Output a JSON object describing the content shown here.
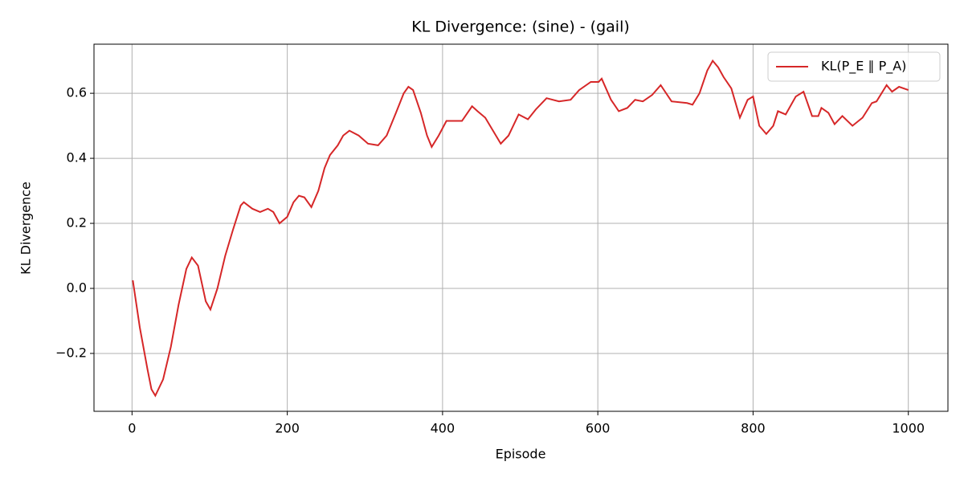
{
  "chart_data": {
    "type": "line",
    "title": "KL Divergence: (sine) - (gail)",
    "x_label": "Episode",
    "y_label": "KL Divergence",
    "x": [
      1,
      10,
      20,
      25,
      30,
      40,
      50,
      60,
      70,
      77,
      85,
      95,
      101,
      110,
      120,
      130,
      140,
      144,
      155,
      165,
      175,
      182,
      190,
      200,
      208,
      215,
      222,
      231,
      240,
      248,
      255,
      265,
      272,
      280,
      292,
      304,
      317,
      328,
      340,
      350,
      356,
      362,
      372,
      380,
      386,
      395,
      405,
      425,
      438,
      445,
      455,
      475,
      485,
      498,
      510,
      520,
      534,
      550,
      565,
      576,
      591,
      601,
      605,
      617,
      627,
      638,
      648,
      658,
      670,
      681,
      695,
      715,
      722,
      731,
      741,
      748,
      755,
      762,
      772,
      783,
      793,
      800,
      808,
      817,
      826,
      832,
      842,
      855,
      865,
      876,
      884,
      888,
      897,
      905,
      915,
      928,
      941,
      953,
      959,
      972,
      979,
      988,
      1000
    ],
    "series": [
      {
        "name": "KL(P_E ∥ P_A)",
        "color": "#d62728",
        "values": [
          0.025,
          -0.12,
          -0.25,
          -0.31,
          -0.33,
          -0.28,
          -0.18,
          -0.05,
          0.06,
          0.095,
          0.07,
          -0.04,
          -0.065,
          0.0,
          0.1,
          0.18,
          0.255,
          0.265,
          0.245,
          0.235,
          0.245,
          0.235,
          0.2,
          0.22,
          0.265,
          0.285,
          0.28,
          0.25,
          0.3,
          0.37,
          0.41,
          0.44,
          0.47,
          0.485,
          0.47,
          0.445,
          0.44,
          0.47,
          0.54,
          0.6,
          0.62,
          0.61,
          0.54,
          0.47,
          0.435,
          0.47,
          0.515,
          0.515,
          0.56,
          0.545,
          0.525,
          0.445,
          0.47,
          0.535,
          0.52,
          0.55,
          0.585,
          0.575,
          0.58,
          0.61,
          0.635,
          0.635,
          0.645,
          0.58,
          0.545,
          0.555,
          0.58,
          0.575,
          0.595,
          0.625,
          0.575,
          0.57,
          0.565,
          0.6,
          0.67,
          0.7,
          0.68,
          0.65,
          0.615,
          0.525,
          0.58,
          0.59,
          0.5,
          0.475,
          0.5,
          0.545,
          0.535,
          0.59,
          0.605,
          0.53,
          0.53,
          0.555,
          0.54,
          0.505,
          0.53,
          0.5,
          0.525,
          0.57,
          0.575,
          0.625,
          0.605,
          0.62,
          0.61
        ]
      }
    ],
    "xlim": [
      -49,
      1051
    ],
    "ylim": [
      -0.378,
      0.751
    ],
    "xticks": [
      0,
      200,
      400,
      600,
      800,
      1000
    ],
    "yticks": [
      {
        "value": -0.2,
        "label": "−0.2"
      },
      {
        "value": 0,
        "label": "0.0"
      },
      0.2,
      0.4,
      0.6
    ],
    "grid": true,
    "legend": "upper right"
  }
}
